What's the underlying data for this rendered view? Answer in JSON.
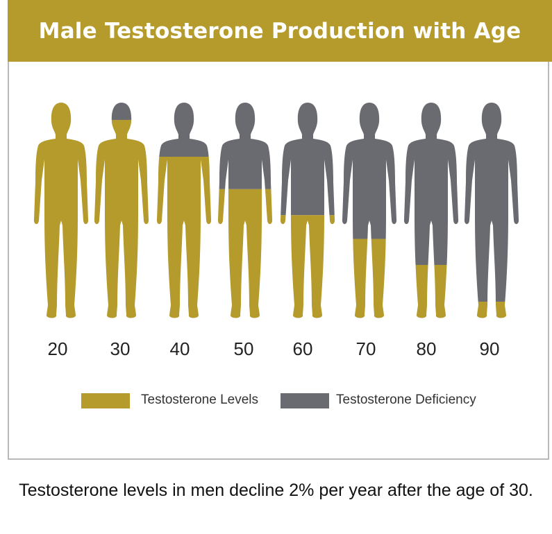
{
  "chart_data": {
    "type": "bar",
    "title": "Male Testosterone Production with Age",
    "categories": [
      "20",
      "30",
      "40",
      "50",
      "60",
      "70",
      "80",
      "90"
    ],
    "series": [
      {
        "name": "Testosterone Levels",
        "values": [
          100,
          92,
          75,
          60,
          48,
          37,
          25,
          8
        ]
      },
      {
        "name": "Testosterone Deficiency",
        "values": [
          0,
          8,
          25,
          40,
          52,
          63,
          75,
          92
        ]
      }
    ],
    "ylim": [
      0,
      100
    ],
    "legend_position": "bottom",
    "colors": {
      "levels": "#b59a2c",
      "deficiency": "#6a6b70"
    }
  },
  "caption": "Testosterone levels in men decline 2% per year after the age of 30."
}
